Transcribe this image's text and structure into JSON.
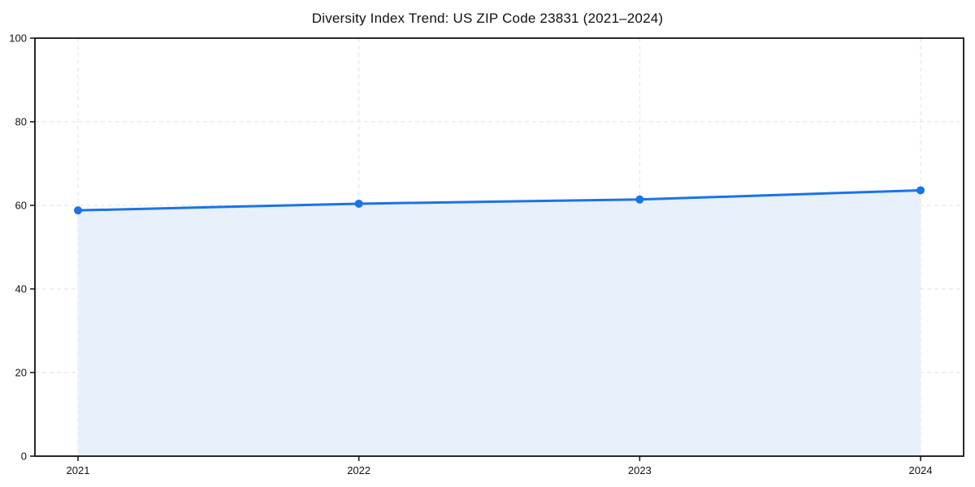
{
  "chart_data": {
    "type": "area",
    "title": "Diversity Index Trend: US ZIP Code 23831 (2021–2024)",
    "series_name": "Diversity Index",
    "categories": [
      "2021",
      "2022",
      "2023",
      "2024"
    ],
    "values": [
      58.8,
      60.4,
      61.4,
      63.6
    ],
    "xlabel": "",
    "ylabel": "",
    "ylim": [
      0,
      100
    ],
    "yticks": [
      0,
      20,
      40,
      60,
      80,
      100
    ],
    "grid": true,
    "legend": "none",
    "colors": {
      "line": "#1a73e8",
      "marker": "#1a73e8",
      "fill": "#e8f0fc",
      "grid": "#e0e0e0",
      "spine": "#111111",
      "text": "#111111",
      "background": "#ffffff"
    }
  }
}
